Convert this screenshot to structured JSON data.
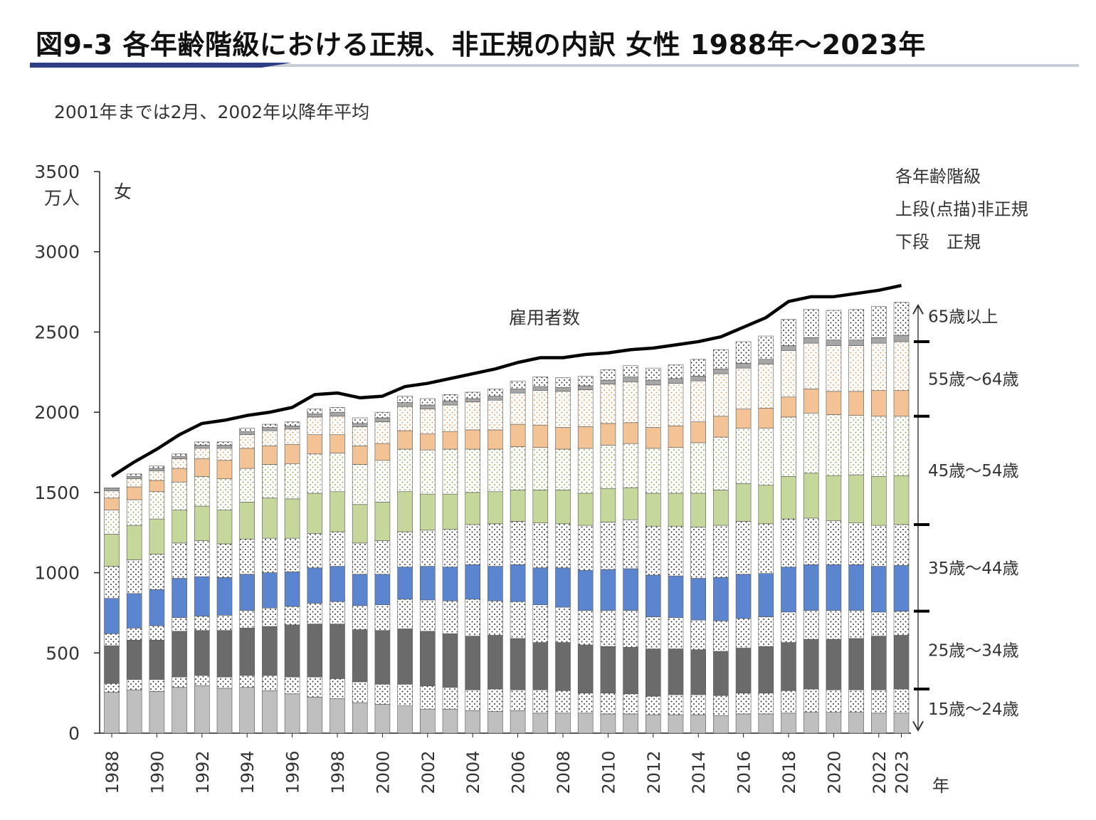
{
  "page": {
    "title": "図9-3 各年齢階級における正規、非正規の内訳 女性 1988年～2023年",
    "subtitle": "2001年までは2月、2002年以降年平均"
  },
  "chart_data": {
    "type": "bar",
    "subtype": "stacked-bar-with-line",
    "ylabel": "万人",
    "ylim": [
      0,
      3500
    ],
    "yticks": [
      0,
      500,
      1000,
      1500,
      2000,
      2500,
      3000,
      3500
    ],
    "xlabel": "年",
    "panel_label": "女",
    "line_label": "雇用者数",
    "legend_notes": [
      "各年齢階級",
      "上段(点描)非正規",
      "下段　正規"
    ],
    "grid": false,
    "xtick_labels": [
      "1988",
      "1990",
      "1992",
      "1994",
      "1996",
      "1998",
      "2000",
      "2002",
      "2004",
      "2006",
      "2008",
      "2010",
      "2012",
      "2014",
      "2016",
      "2018",
      "2020",
      "2022",
      "2023"
    ],
    "years": [
      1988,
      1989,
      1990,
      1991,
      1992,
      1993,
      1994,
      1995,
      1996,
      1997,
      1998,
      1999,
      2000,
      2001,
      2002,
      2003,
      2004,
      2005,
      2006,
      2007,
      2008,
      2009,
      2010,
      2011,
      2012,
      2013,
      2014,
      2015,
      2016,
      2017,
      2018,
      2019,
      2020,
      2021,
      2022,
      2023
    ],
    "age_groups": [
      "15歳～24歳",
      "25歳～34歳",
      "35歳～44歳",
      "45歳～54歳",
      "55歳～64歳",
      "65歳以上"
    ],
    "colors": {
      "15-24": "#bfbfbf",
      "25-34": "#6b6b6b",
      "35-44": "#5b86cf",
      "45-54": "#c6d79c",
      "55-64": "#f3c396",
      "65+": "#a6a6a6",
      "non_regular_fill": "#ffffff",
      "line": "#000000"
    },
    "series": [
      {
        "name": "15歳～24歳 正規",
        "age": "15-24",
        "kind": "regular",
        "values": [
          255,
          270,
          260,
          285,
          295,
          280,
          285,
          265,
          245,
          225,
          215,
          190,
          180,
          170,
          150,
          150,
          140,
          135,
          140,
          125,
          125,
          125,
          120,
          120,
          115,
          115,
          115,
          110,
          120,
          120,
          125,
          130,
          130,
          130,
          125,
          125
        ]
      },
      {
        "name": "15歳～24歳 非正規",
        "age": "15-24",
        "kind": "non_regular",
        "values": [
          55,
          65,
          75,
          65,
          65,
          70,
          75,
          95,
          105,
          125,
          125,
          130,
          125,
          135,
          145,
          135,
          130,
          140,
          130,
          145,
          140,
          125,
          130,
          125,
          115,
          125,
          125,
          125,
          130,
          130,
          140,
          145,
          140,
          140,
          145,
          150
        ]
      },
      {
        "name": "25歳～34歳 正規",
        "age": "25-34",
        "kind": "regular",
        "values": [
          235,
          245,
          245,
          285,
          280,
          290,
          295,
          305,
          325,
          330,
          340,
          325,
          335,
          345,
          340,
          335,
          335,
          335,
          320,
          295,
          300,
          300,
          290,
          290,
          295,
          285,
          280,
          275,
          280,
          290,
          300,
          310,
          315,
          320,
          335,
          335
        ]
      },
      {
        "name": "25歳～34歳 非正規",
        "age": "25-34",
        "kind": "non_regular",
        "values": [
          75,
          75,
          90,
          85,
          90,
          95,
          110,
          115,
          115,
          130,
          140,
          150,
          160,
          185,
          195,
          205,
          230,
          215,
          230,
          235,
          220,
          215,
          225,
          230,
          200,
          195,
          185,
          190,
          185,
          185,
          190,
          180,
          180,
          175,
          150,
          150
        ]
      },
      {
        "name": "35歳～44歳 正規",
        "age": "35-44",
        "kind": "regular",
        "values": [
          220,
          215,
          225,
          245,
          245,
          235,
          225,
          220,
          215,
          220,
          220,
          195,
          190,
          200,
          210,
          210,
          215,
          215,
          230,
          230,
          245,
          250,
          255,
          260,
          260,
          260,
          260,
          270,
          275,
          270,
          280,
          285,
          285,
          285,
          285,
          285
        ]
      },
      {
        "name": "35歳～44歳 非正規",
        "age": "35-44",
        "kind": "non_regular",
        "values": [
          200,
          210,
          220,
          220,
          225,
          210,
          220,
          215,
          210,
          215,
          215,
          195,
          210,
          220,
          225,
          235,
          250,
          265,
          270,
          280,
          275,
          280,
          295,
          305,
          305,
          310,
          320,
          325,
          330,
          310,
          300,
          290,
          275,
          260,
          255,
          255
        ]
      },
      {
        "name": "45歳～54歳 正規",
        "age": "45-54",
        "kind": "regular",
        "values": [
          200,
          215,
          220,
          205,
          215,
          210,
          230,
          250,
          245,
          250,
          250,
          240,
          240,
          250,
          225,
          220,
          200,
          200,
          195,
          205,
          210,
          200,
          210,
          200,
          205,
          205,
          210,
          220,
          235,
          240,
          265,
          280,
          280,
          300,
          305,
          305
        ]
      },
      {
        "name": "45歳～54歳 非正規",
        "age": "45-54",
        "kind": "non_regular",
        "values": [
          150,
          160,
          170,
          175,
          185,
          195,
          210,
          210,
          220,
          245,
          240,
          250,
          260,
          265,
          275,
          280,
          270,
          265,
          270,
          265,
          255,
          280,
          270,
          275,
          280,
          285,
          315,
          330,
          345,
          355,
          370,
          375,
          380,
          370,
          375,
          370
        ]
      },
      {
        "name": "55歳～64歳 正規",
        "age": "55-64",
        "kind": "regular",
        "values": [
          75,
          80,
          70,
          85,
          110,
          115,
          125,
          115,
          120,
          120,
          115,
          115,
          105,
          115,
          100,
          110,
          120,
          120,
          140,
          140,
          135,
          135,
          135,
          130,
          130,
          135,
          130,
          130,
          120,
          125,
          125,
          150,
          145,
          150,
          160,
          160
        ]
      },
      {
        "name": "55歳～64歳 非正規",
        "age": "55-64",
        "kind": "non_regular",
        "values": [
          45,
          50,
          60,
          60,
          65,
          75,
          85,
          95,
          95,
          110,
          115,
          120,
          135,
          150,
          155,
          165,
          175,
          185,
          195,
          215,
          225,
          230,
          245,
          255,
          265,
          265,
          255,
          265,
          255,
          275,
          290,
          285,
          285,
          285,
          295,
          305
        ]
      },
      {
        "name": "65歳以上 正規",
        "age": "65+",
        "kind": "regular",
        "values": [
          15,
          15,
          15,
          15,
          20,
          20,
          20,
          20,
          20,
          20,
          25,
          20,
          25,
          25,
          25,
          25,
          20,
          25,
          25,
          25,
          25,
          25,
          25,
          30,
          30,
          30,
          30,
          30,
          30,
          30,
          30,
          35,
          35,
          35,
          35,
          40
        ]
      },
      {
        "name": "65歳以上 非正規",
        "age": "65+",
        "kind": "non_regular",
        "values": [
          5,
          15,
          15,
          15,
          20,
          20,
          20,
          20,
          25,
          30,
          30,
          35,
          35,
          40,
          40,
          40,
          40,
          45,
          50,
          60,
          60,
          60,
          65,
          70,
          75,
          85,
          105,
          120,
          135,
          145,
          165,
          175,
          185,
          190,
          195,
          205
        ]
      }
    ],
    "line": {
      "name": "雇用者数",
      "values": [
        1600,
        1690,
        1770,
        1860,
        1930,
        1950,
        1980,
        2000,
        2030,
        2110,
        2120,
        2090,
        2100,
        2160,
        2180,
        2210,
        2240,
        2270,
        2310,
        2340,
        2340,
        2360,
        2370,
        2390,
        2400,
        2420,
        2440,
        2470,
        2530,
        2590,
        2690,
        2720,
        2720,
        2740,
        2760,
        2790
      ]
    }
  }
}
